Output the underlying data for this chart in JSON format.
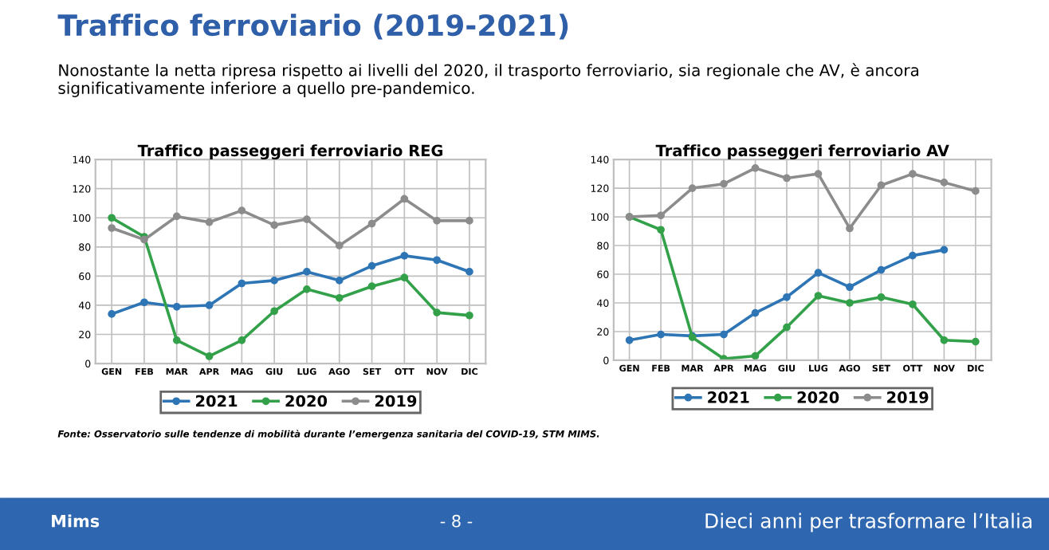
{
  "chart_data": [
    {
      "type": "line",
      "title": "Traffico passeggeri ferroviario REG",
      "categories": [
        "GEN",
        "FEB",
        "MAR",
        "APR",
        "MAG",
        "GIU",
        "LUG",
        "AGO",
        "SET",
        "OTT",
        "NOV",
        "DIC"
      ],
      "series": [
        {
          "name": "2021",
          "color": "#2e75b6",
          "values": [
            34,
            42,
            39,
            40,
            55,
            57,
            63,
            57,
            67,
            74,
            71,
            63
          ]
        },
        {
          "name": "2020",
          "color": "#33a04a",
          "values": [
            100,
            87,
            16,
            5,
            16,
            36,
            51,
            45,
            53,
            59,
            35,
            33
          ]
        },
        {
          "name": "2019",
          "color": "#8c8c8c",
          "values": [
            93,
            85,
            101,
            97,
            105,
            95,
            99,
            81,
            96,
            113,
            98,
            98
          ]
        }
      ],
      "ylim": [
        0,
        140
      ],
      "yticks": [
        0,
        20,
        40,
        60,
        80,
        100,
        120,
        140
      ],
      "grid": true,
      "legend": "bottom",
      "marker": "circle",
      "line_style": "solid",
      "annotations": [
        "Traffico ferroviario (2019-2021)",
        "Nonostante la netta ripresa rispetto ai livelli del 2020, il trasporto ferroviario, sia regionale che AV, è ancora significativamente inferiore a quello pre-pandemico.",
        "Fonte: Osservatorio sulle tendenze di mobilità durante l’emergenza sanitaria del COVID-19, STM MIMS.",
        "Mims",
        "- 8 -",
        "Dieci anni per trasformare l’Italia"
      ]
    },
    {
      "type": "line",
      "title": "Traffico passeggeri ferroviario AV",
      "categories": [
        "GEN",
        "FEB",
        "MAR",
        "APR",
        "MAG",
        "GIU",
        "LUG",
        "AGO",
        "SET",
        "OTT",
        "NOV",
        "DIC"
      ],
      "series": [
        {
          "name": "2021",
          "color": "#2e75b6",
          "values": [
            14,
            18,
            17,
            18,
            33,
            44,
            61,
            51,
            63,
            73,
            77,
            null
          ]
        },
        {
          "name": "2020",
          "color": "#33a04a",
          "values": [
            100,
            91,
            16,
            1,
            3,
            23,
            45,
            40,
            44,
            39,
            14,
            13
          ]
        },
        {
          "name": "2019",
          "color": "#8c8c8c",
          "values": [
            100,
            101,
            120,
            123,
            134,
            127,
            130,
            92,
            122,
            130,
            124,
            118
          ]
        }
      ],
      "ylim": [
        0,
        140
      ],
      "yticks": [
        0,
        20,
        40,
        60,
        80,
        100,
        120,
        140
      ],
      "grid": true,
      "legend": "bottom",
      "marker": "circle",
      "line_style": "solid"
    }
  ]
}
